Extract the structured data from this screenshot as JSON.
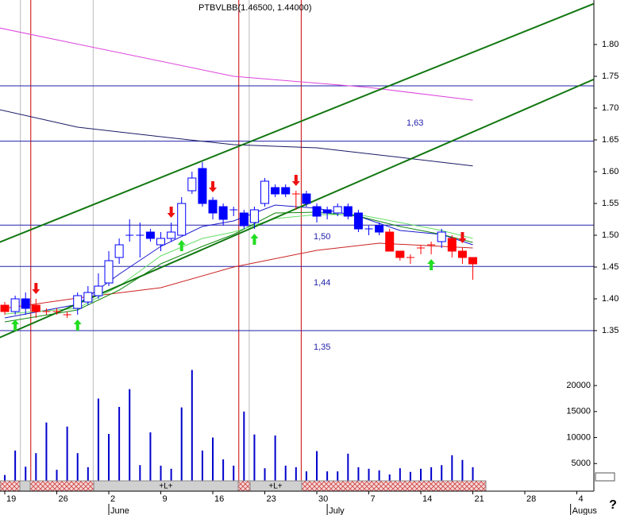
{
  "chart_data": {
    "type": "candlestick",
    "title": "PTBVLBB(1.46500, 1.44000)",
    "open": [
      1.39,
      1.38,
      1.4,
      1.39,
      1.38,
      1.38,
      1.375,
      1.385,
      1.395,
      1.405,
      1.425,
      1.465,
      1.5,
      1.5,
      1.505,
      1.485,
      1.495,
      1.5,
      1.57,
      1.605,
      1.555,
      1.545,
      1.54,
      1.535,
      1.52,
      1.55,
      1.575,
      1.575,
      1.565,
      1.565,
      1.545,
      1.54,
      1.535,
      1.545,
      1.535,
      1.51,
      1.515,
      1.505,
      1.475,
      1.465,
      1.48,
      1.485,
      1.49,
      1.495,
      1.475,
      1.465
    ],
    "high": [
      1.395,
      1.405,
      1.41,
      1.4,
      1.385,
      1.385,
      1.38,
      1.41,
      1.42,
      1.44,
      1.475,
      1.495,
      1.525,
      1.52,
      1.51,
      1.505,
      1.52,
      1.56,
      1.6,
      1.615,
      1.56,
      1.55,
      1.545,
      1.54,
      1.545,
      1.59,
      1.58,
      1.58,
      1.57,
      1.57,
      1.55,
      1.545,
      1.55,
      1.55,
      1.54,
      1.515,
      1.52,
      1.51,
      1.475,
      1.47,
      1.485,
      1.49,
      1.51,
      1.5,
      1.48,
      1.465
    ],
    "low": [
      1.375,
      1.375,
      1.375,
      1.37,
      1.375,
      1.375,
      1.37,
      1.375,
      1.39,
      1.4,
      1.42,
      1.455,
      1.49,
      1.465,
      1.49,
      1.475,
      1.49,
      1.5,
      1.565,
      1.545,
      1.525,
      1.515,
      1.53,
      1.51,
      1.51,
      1.545,
      1.56,
      1.56,
      1.54,
      1.545,
      1.52,
      1.525,
      1.53,
      1.525,
      1.505,
      1.5,
      1.5,
      1.475,
      1.46,
      1.455,
      1.47,
      1.47,
      1.48,
      1.465,
      1.455,
      1.43
    ],
    "close": [
      1.38,
      1.4,
      1.385,
      1.38,
      1.38,
      1.38,
      1.375,
      1.405,
      1.41,
      1.42,
      1.46,
      1.485,
      1.5,
      1.5,
      1.495,
      1.495,
      1.505,
      1.55,
      1.59,
      1.55,
      1.535,
      1.525,
      1.54,
      1.515,
      1.54,
      1.585,
      1.565,
      1.565,
      1.565,
      1.55,
      1.53,
      1.535,
      1.545,
      1.53,
      1.51,
      1.51,
      1.505,
      1.475,
      1.465,
      1.465,
      1.48,
      1.485,
      1.505,
      1.475,
      1.465,
      1.455
    ],
    "candle_colors": [
      "#ff0000",
      "#ffffff",
      "#0000ff",
      "#ff0000",
      "#ff0000",
      "#ff0000",
      "#ff0000",
      "#ffffff",
      "#ffffff",
      "#ffffff",
      "#ffffff",
      "#ffffff",
      "#0000ff",
      "#0000ff",
      "#0000ff",
      "#ffffff",
      "#ffffff",
      "#ffffff",
      "#ffffff",
      "#0000ff",
      "#0000ff",
      "#0000ff",
      "#0000ff",
      "#0000ff",
      "#ffffff",
      "#ffffff",
      "#0000ff",
      "#0000ff",
      "#ff0000",
      "#0000ff",
      "#0000ff",
      "#0000ff",
      "#ffffff",
      "#0000ff",
      "#0000ff",
      "#0000ff",
      "#0000ff",
      "#ff0000",
      "#ff0000",
      "#ff0000",
      "#ff0000",
      "#ff0000",
      "#ffffff",
      "#ff0000",
      "#ff0000",
      "#ff0000"
    ],
    "volume": [
      2800,
      7500,
      4400,
      7000,
      12900,
      3800,
      12100,
      7000,
      4300,
      17500,
      10700,
      15900,
      19300,
      4700,
      11000,
      4600,
      4000,
      15800,
      23000,
      7500,
      10000,
      5800,
      4600,
      15000,
      10600,
      4100,
      10400,
      4600,
      4300,
      3500,
      7400,
      3500,
      3500,
      6900,
      4300,
      4000,
      3700,
      2900,
      4100,
      3400,
      4000,
      4300,
      4700,
      6600,
      5700,
      4300
    ],
    "volume_color": "#0000cc",
    "lines": [
      {
        "color": "#dd44dd",
        "x": [
          -0.5,
          22,
          35,
          45
        ],
        "values": [
          1.826,
          1.75,
          1.7325,
          1.7125
        ]
      },
      {
        "color": "#1a1a66",
        "x": [
          -0.5,
          7,
          15,
          22,
          30,
          38,
          45
        ],
        "values": [
          1.6975,
          1.67,
          1.655,
          1.6425,
          1.6375,
          1.6225,
          1.609
        ]
      },
      {
        "color": "#cc2222",
        "x": [
          0,
          7,
          15,
          22,
          30,
          36,
          45
        ],
        "values": [
          1.385,
          1.40125,
          1.4175,
          1.45,
          1.47625,
          1.4875,
          1.48
        ]
      },
      {
        "color": "#1a1acc",
        "x": [
          0,
          7,
          11,
          15,
          19,
          22,
          26,
          30,
          34,
          38,
          42,
          45
        ],
        "values": [
          1.37,
          1.39125,
          1.43875,
          1.4825,
          1.51375,
          1.5225,
          1.5475,
          1.5425,
          1.53,
          1.5075,
          1.50125,
          1.485
        ]
      },
      {
        "color": "#118811",
        "x": [
          0,
          7,
          11,
          15,
          19,
          22,
          26,
          30,
          34,
          38,
          42,
          45
        ],
        "values": [
          1.36375,
          1.3825,
          1.41375,
          1.455,
          1.4825,
          1.50125,
          1.535,
          1.53625,
          1.53,
          1.51375,
          1.50125,
          1.48875
        ]
      },
      {
        "color": "#66dd66",
        "x": [
          0,
          7,
          11,
          15,
          19,
          22,
          26,
          30,
          34,
          38,
          42,
          45
        ],
        "values": [
          1.37625,
          1.385,
          1.42,
          1.4675,
          1.495,
          1.505,
          1.52625,
          1.5325,
          1.5325,
          1.52,
          1.5075,
          1.495
        ]
      }
    ],
    "trendlines": [
      {
        "color": "#117711",
        "x": [
          -0.5,
          56.6
        ],
        "values": [
          1.489,
          1.864
        ]
      },
      {
        "color": "#117711",
        "x": [
          -0.5,
          56.6
        ],
        "values": [
          1.339,
          1.745
        ]
      }
    ],
    "hlines": [
      1.735,
      1.648,
      1.516,
      1.451,
      1.35
    ],
    "level_labels": [
      "1,63",
      "1,50",
      "1,44",
      "1,35"
    ],
    "red_vlines": [
      2.5,
      22.5,
      28.5
    ],
    "grey_vlines": [
      1.5,
      8.5,
      23.5
    ],
    "buy_signals": [
      1,
      7,
      17,
      24,
      41
    ],
    "sell_signals": [
      3,
      16,
      20,
      28,
      44
    ],
    "band_labels": [
      "+L+",
      "+L+"
    ],
    "xlim": [
      -0.46,
      56.64
    ],
    "xticks": [
      {
        "value": 0,
        "label": "19"
      },
      {
        "value": 5,
        "label": "26"
      },
      {
        "value": 10,
        "label": "2"
      },
      {
        "value": 15,
        "label": "9"
      },
      {
        "value": 20,
        "label": "16"
      },
      {
        "value": 25,
        "label": "23"
      },
      {
        "value": 30,
        "label": "30"
      },
      {
        "value": 35,
        "label": "7"
      },
      {
        "value": 40,
        "label": "14"
      },
      {
        "value": 45,
        "label": "21"
      },
      {
        "value": 50,
        "label": "28"
      },
      {
        "value": 55,
        "label": "4"
      }
    ],
    "months": [
      {
        "value": 10,
        "label": "June"
      },
      {
        "value": 31,
        "label": "July"
      },
      {
        "value": 54.4,
        "label": "Augus"
      }
    ],
    "ylim": [
      1.3,
      1.87
    ],
    "yticks": [
      1.35,
      {
        "value": 1.4,
        "label": "1.40"
      },
      1.45,
      {
        "value": 1.5,
        "label": "1.50"
      },
      1.55,
      {
        "value": 1.6,
        "label": "1.60"
      },
      1.65,
      {
        "value": 1.7,
        "label": "1.70"
      },
      1.75,
      {
        "value": 1.8,
        "label": "1.80"
      }
    ],
    "volume_ylim": [
      0,
      24600
    ],
    "volume_yticks": [
      5000,
      10000,
      15000,
      20000
    ],
    "help": "?"
  }
}
